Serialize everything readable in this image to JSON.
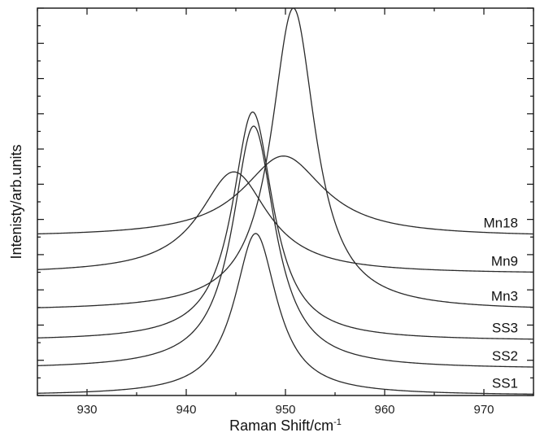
{
  "chart_data": {
    "type": "line",
    "title": "",
    "xlabel": "Raman Shift/cm",
    "xlabel_superscript": "-1",
    "ylabel": "Intenisty/arb.units",
    "xlim": [
      925,
      975
    ],
    "ylim": [
      0,
      11
    ],
    "x_ticks": [
      930,
      940,
      950,
      960,
      970
    ],
    "y_tick_labels_shown": false,
    "grid": false,
    "legend": "none; series labelled directly at right edge",
    "series": [
      {
        "name": "SS1",
        "baseline": 0.0,
        "peak_x": 947.0,
        "peak_height": 4.6,
        "hwhm": 2.6
      },
      {
        "name": "SS2",
        "baseline": 0.75,
        "peak_x": 946.8,
        "peak_height": 6.9,
        "hwhm": 2.6
      },
      {
        "name": "SS3",
        "baseline": 1.55,
        "peak_x": 946.7,
        "peak_height": 6.5,
        "hwhm": 2.5
      },
      {
        "name": "Mn3",
        "baseline": 2.4,
        "peak_x": 950.8,
        "peak_height": 8.6,
        "hwhm": 2.7
      },
      {
        "name": "Mn9",
        "baseline": 3.45,
        "peak_x": 944.8,
        "peak_height": 2.9,
        "hwhm": 4.2
      },
      {
        "name": "Mn18",
        "baseline": 4.5,
        "peak_x": 949.8,
        "peak_height": 2.3,
        "hwhm": 5.0
      }
    ]
  }
}
